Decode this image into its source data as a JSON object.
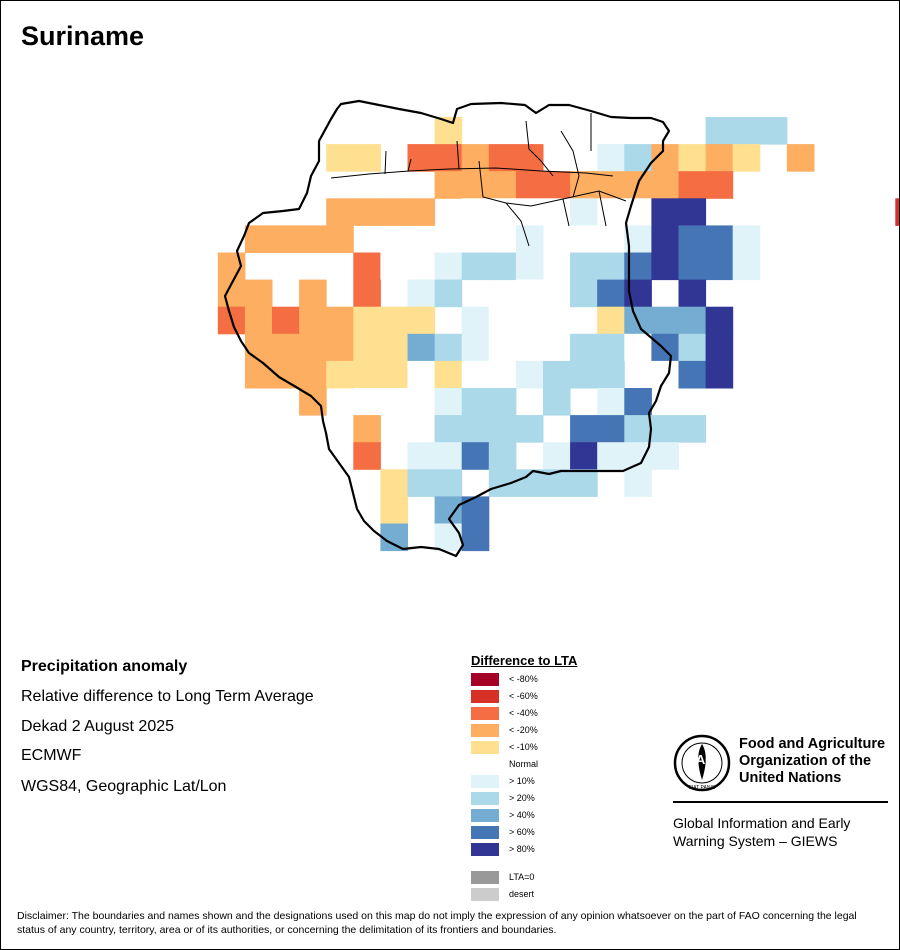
{
  "title": "Suriname",
  "info": {
    "heading": "Precipitation anomaly",
    "line1": "Relative difference to Long Term Average",
    "line2": "Dekad 2 August 2025",
    "line3": "ECMWF",
    "line4": "WGS84, Geographic Lat/Lon"
  },
  "legend": {
    "title": "Difference to LTA",
    "items": [
      {
        "label": "< -80%",
        "color": "#a50026"
      },
      {
        "label": "< -60%",
        "color": "#d73027"
      },
      {
        "label": "< -40%",
        "color": "#f46d43"
      },
      {
        "label": "< -20%",
        "color": "#fdae61"
      },
      {
        "label": "< -10%",
        "color": "#fee090"
      },
      {
        "label": "Normal",
        "color": "#ffffff"
      },
      {
        "label": "> 10%",
        "color": "#e0f3f8"
      },
      {
        "label": "> 20%",
        "color": "#abd9e9"
      },
      {
        "label": "> 40%",
        "color": "#74add1"
      },
      {
        "label": "> 60%",
        "color": "#4575b4"
      },
      {
        "label": "> 80%",
        "color": "#313695"
      },
      {
        "label": "LTA=0",
        "color": "#999999"
      },
      {
        "label": "desert",
        "color": "#cccccc"
      }
    ]
  },
  "map": {
    "class_colors": [
      "#ffffff",
      "#e0f3f8",
      "#abd9e9",
      "#74add1",
      "#4575b4",
      "#313695",
      "#fee090",
      "#fdae61",
      "#f46d43",
      "#d73027",
      "#a50026"
    ],
    "grid_origin_col": 8,
    "rows": [
      "........6....00000222.....",
      "....66.88788.0127676.7....",
      "........77788777788.......",
      "....7777.000010055.......9",
      ".7777...0001.0015441......",
      "7....8001221.2245441......",
      "77.7.8.12..0.245.5........",
      "87877666.100..63335.......",
      ".77776632100.220425.......",
      ".777666060.1222.045.......",
      "...7.000122.2.14..........",
      ".....7..2222.44222........",
      ".....8.1142.15111.........",
      "......622.2222.1..........",
      "......6.34................",
      "......3.14................"
    ]
  },
  "fao": {
    "emblem_text": "FAO",
    "motto": "FIAT PANIS",
    "name_line1": "Food and Agriculture",
    "name_line2": "Organization of the",
    "name_line3": "United Nations",
    "giews_line1": "Global Information and Early",
    "giews_line2": "Warning System – GIEWS"
  },
  "disclaimer": "Disclaimer: The boundaries and names shown and the designations used on this map do not imply the expression of any opinion whatsoever on the part of FAO concerning the legal status of any country, territory, area or of its authorities, or concerning the delimitation of its frontiers and boundaries."
}
